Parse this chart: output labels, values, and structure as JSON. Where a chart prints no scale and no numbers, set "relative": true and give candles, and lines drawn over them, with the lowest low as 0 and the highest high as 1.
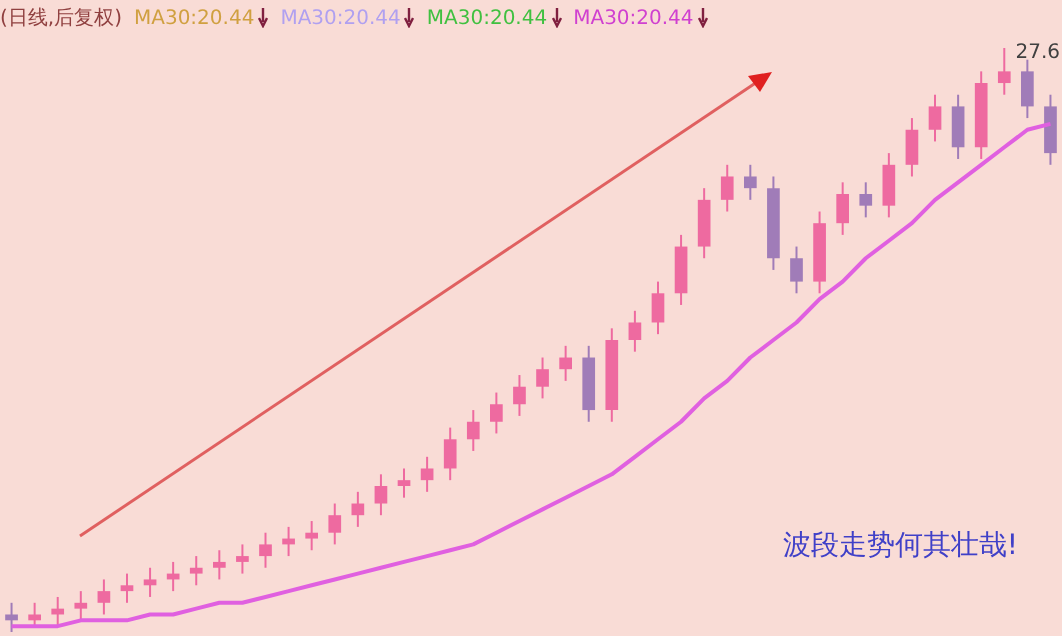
{
  "chart_data": {
    "type": "candlestick",
    "title": "(日线,后复权)",
    "relative": true,
    "legend": false,
    "categories": [
      null,
      null,
      null,
      null,
      null,
      null,
      null,
      null,
      null,
      null,
      null,
      null,
      null,
      null,
      null,
      null,
      null,
      null,
      null,
      null,
      null,
      null,
      null,
      null,
      null,
      null,
      null,
      null,
      null,
      null,
      null,
      null,
      null,
      null,
      null,
      null,
      null,
      null,
      null,
      null,
      null,
      null,
      null,
      null,
      null,
      null
    ],
    "ohlc": [
      [
        0.03,
        0.05,
        0,
        0.02
      ],
      [
        0.02,
        0.05,
        0.01,
        0.03
      ],
      [
        0.03,
        0.06,
        0.01,
        0.04
      ],
      [
        0.04,
        0.07,
        0.02,
        0.05
      ],
      [
        0.05,
        0.09,
        0.03,
        0.07
      ],
      [
        0.07,
        0.1,
        0.05,
        0.08
      ],
      [
        0.08,
        0.11,
        0.06,
        0.09
      ],
      [
        0.09,
        0.12,
        0.07,
        0.1
      ],
      [
        0.1,
        0.13,
        0.08,
        0.11
      ],
      [
        0.11,
        0.14,
        0.09,
        0.12
      ],
      [
        0.12,
        0.15,
        0.1,
        0.13
      ],
      [
        0.13,
        0.17,
        0.11,
        0.15
      ],
      [
        0.15,
        0.18,
        0.13,
        0.16
      ],
      [
        0.16,
        0.19,
        0.14,
        0.17
      ],
      [
        0.17,
        0.22,
        0.15,
        0.2
      ],
      [
        0.2,
        0.24,
        0.18,
        0.22
      ],
      [
        0.22,
        0.27,
        0.2,
        0.25
      ],
      [
        0.25,
        0.28,
        0.23,
        0.26
      ],
      [
        0.26,
        0.3,
        0.24,
        0.28
      ],
      [
        0.28,
        0.35,
        0.26,
        0.33
      ],
      [
        0.33,
        0.38,
        0.31,
        0.36
      ],
      [
        0.36,
        0.41,
        0.34,
        0.39
      ],
      [
        0.39,
        0.44,
        0.37,
        0.42
      ],
      [
        0.42,
        0.47,
        0.4,
        0.45
      ],
      [
        0.45,
        0.49,
        0.43,
        0.47
      ],
      [
        0.47,
        0.49,
        0.36,
        0.38
      ],
      [
        0.38,
        0.52,
        0.36,
        0.5
      ],
      [
        0.5,
        0.55,
        0.48,
        0.53
      ],
      [
        0.53,
        0.6,
        0.51,
        0.58
      ],
      [
        0.58,
        0.68,
        0.56,
        0.66
      ],
      [
        0.66,
        0.76,
        0.64,
        0.74
      ],
      [
        0.74,
        0.8,
        0.72,
        0.78
      ],
      [
        0.78,
        0.8,
        0.74,
        0.76
      ],
      [
        0.76,
        0.78,
        0.62,
        0.64
      ],
      [
        0.64,
        0.66,
        0.58,
        0.6
      ],
      [
        0.6,
        0.72,
        0.58,
        0.7
      ],
      [
        0.7,
        0.77,
        0.68,
        0.75
      ],
      [
        0.75,
        0.77,
        0.71,
        0.73
      ],
      [
        0.73,
        0.82,
        0.71,
        0.8
      ],
      [
        0.8,
        0.88,
        0.78,
        0.86
      ],
      [
        0.86,
        0.92,
        0.84,
        0.9
      ],
      [
        0.9,
        0.92,
        0.81,
        0.83
      ],
      [
        0.83,
        0.96,
        0.81,
        0.94
      ],
      [
        0.94,
        1,
        0.92,
        0.96
      ],
      [
        0.96,
        0.98,
        0.88,
        0.9
      ],
      [
        0.9,
        0.92,
        0.8,
        0.82
      ]
    ],
    "series": [
      {
        "type": "line",
        "color": "#e060e0",
        "values": [
          0.01,
          0.01,
          0.01,
          0.02,
          0.02,
          0.02,
          0.03,
          0.03,
          0.04,
          0.05,
          0.05,
          0.06,
          0.07,
          0.08,
          0.09,
          0.1,
          0.11,
          0.12,
          0.13,
          0.14,
          0.15,
          0.17,
          0.19,
          0.21,
          0.23,
          0.25,
          0.27,
          0.3,
          0.33,
          0.36,
          0.4,
          0.43,
          0.47,
          0.5,
          0.53,
          0.57,
          0.6,
          0.64,
          0.67,
          0.7,
          0.74,
          0.77,
          0.8,
          0.83,
          0.86,
          0.87
        ]
      }
    ],
    "annotations": [
      "MA30:20.44",
      "MA30:20.44",
      "MA30:20.44",
      "MA30:20.44",
      "27.6",
      "波段走势何其壮哉!"
    ]
  }
}
